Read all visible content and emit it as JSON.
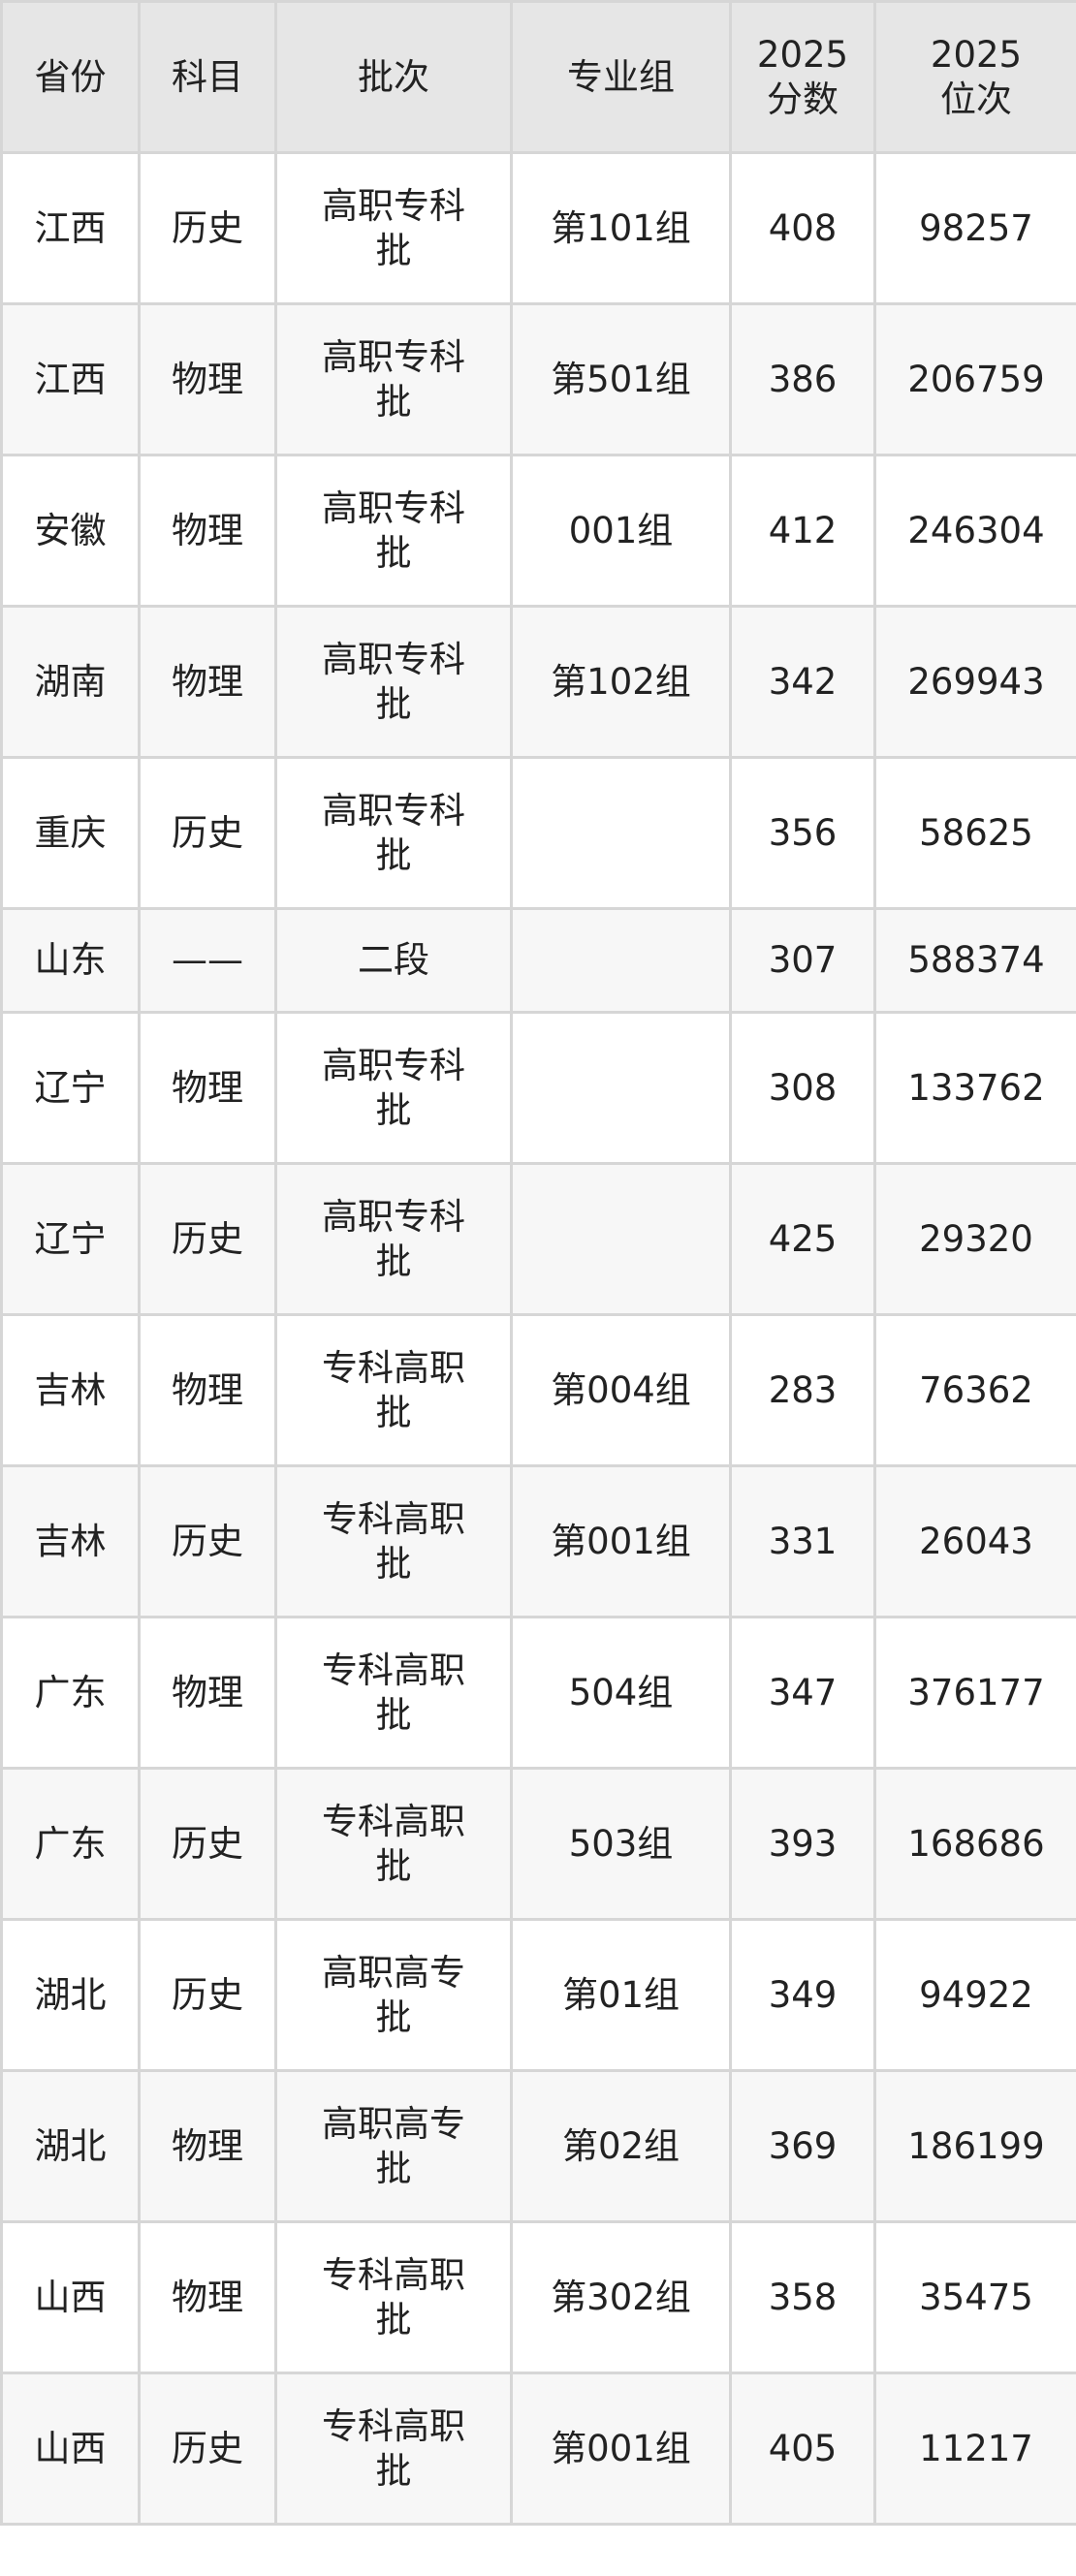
{
  "headers": [
    "省份",
    "科目",
    "批次",
    "专业组",
    "2025\n分数",
    "2025\n位次"
  ],
  "header_lines": [
    [
      "省份"
    ],
    [
      "科目"
    ],
    [
      "批次"
    ],
    [
      "专业组"
    ],
    [
      "2025",
      "分数"
    ],
    [
      "2025",
      "位次"
    ]
  ],
  "rows": [
    [
      "江西",
      "历史",
      "高职专科批",
      "第101组",
      "408",
      "98257"
    ],
    [
      "江西",
      "物理",
      "高职专科批",
      "第501组",
      "386",
      "206759"
    ],
    [
      "安徽",
      "物理",
      "高职专科批",
      "001组",
      "412",
      "246304"
    ],
    [
      "湖南",
      "物理",
      "高职专科批",
      "第102组",
      "342",
      "269943"
    ],
    [
      "重庆",
      "历史",
      "高职专科批",
      "",
      "356",
      "58625"
    ],
    [
      "山东",
      "——",
      "二段",
      "",
      "307",
      "588374"
    ],
    [
      "辽宁",
      "物理",
      "高职专科批",
      "",
      "308",
      "133762"
    ],
    [
      "辽宁",
      "历史",
      "高职专科批",
      "",
      "425",
      "29320"
    ],
    [
      "吉林",
      "物理",
      "专科高职批",
      "第004组",
      "283",
      "76362"
    ],
    [
      "吉林",
      "历史",
      "专科高职批",
      "第001组",
      "331",
      "26043"
    ],
    [
      "广东",
      "物理",
      "专科高职批",
      "504组",
      "347",
      "376177"
    ],
    [
      "广东",
      "历史",
      "专科高职批",
      "503组",
      "393",
      "168686"
    ],
    [
      "湖北",
      "历史",
      "高职高专批",
      "第01组",
      "349",
      "94922"
    ],
    [
      "湖北",
      "物理",
      "高职高专批",
      "第02组",
      "369",
      "186199"
    ],
    [
      "山西",
      "物理",
      "专科高职批",
      "第302组",
      "358",
      "35475"
    ],
    [
      "山西",
      "历史",
      "专科高职批",
      "第001组",
      "405",
      "11217"
    ]
  ]
}
